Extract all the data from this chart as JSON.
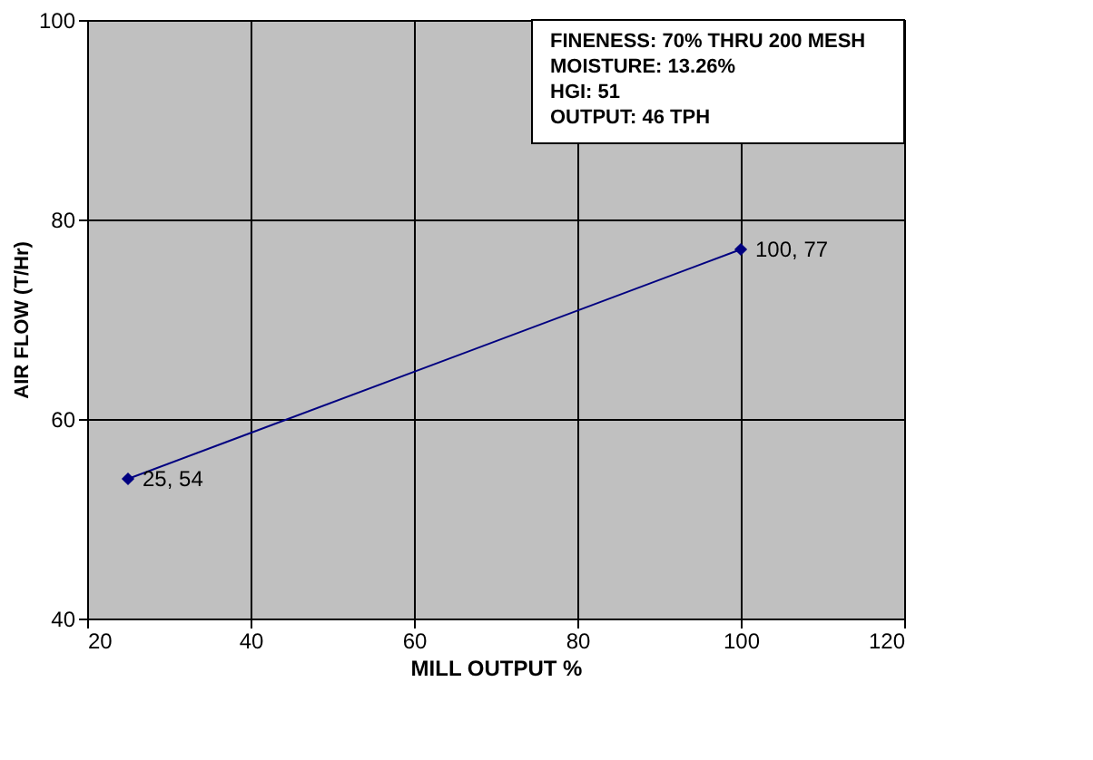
{
  "chart_data": {
    "type": "line",
    "xlabel": "MILL OUTPUT %",
    "ylabel": "AIR FLOW (T/Hr)",
    "x": [
      25,
      100
    ],
    "series": [
      {
        "color": "#000080",
        "values": [
          54,
          77
        ]
      }
    ],
    "marker": "diamond",
    "line_style": "solid",
    "xlim": [
      20,
      120
    ],
    "xticks": [
      20,
      40,
      60,
      80,
      100,
      120
    ],
    "ylim": [
      40,
      100
    ],
    "yticks": [
      40,
      60,
      80,
      100
    ],
    "grid": true,
    "annotations": [
      {
        "text": "25, 54",
        "x": 25,
        "y": 54
      },
      {
        "text": "100, 77",
        "x": 100,
        "y": 77
      },
      "FINENESS: 70% THRU 200 MESH",
      "MOISTURE: 13.26%",
      "HGI: 51",
      "OUTPUT: 46 TPH"
    ]
  }
}
